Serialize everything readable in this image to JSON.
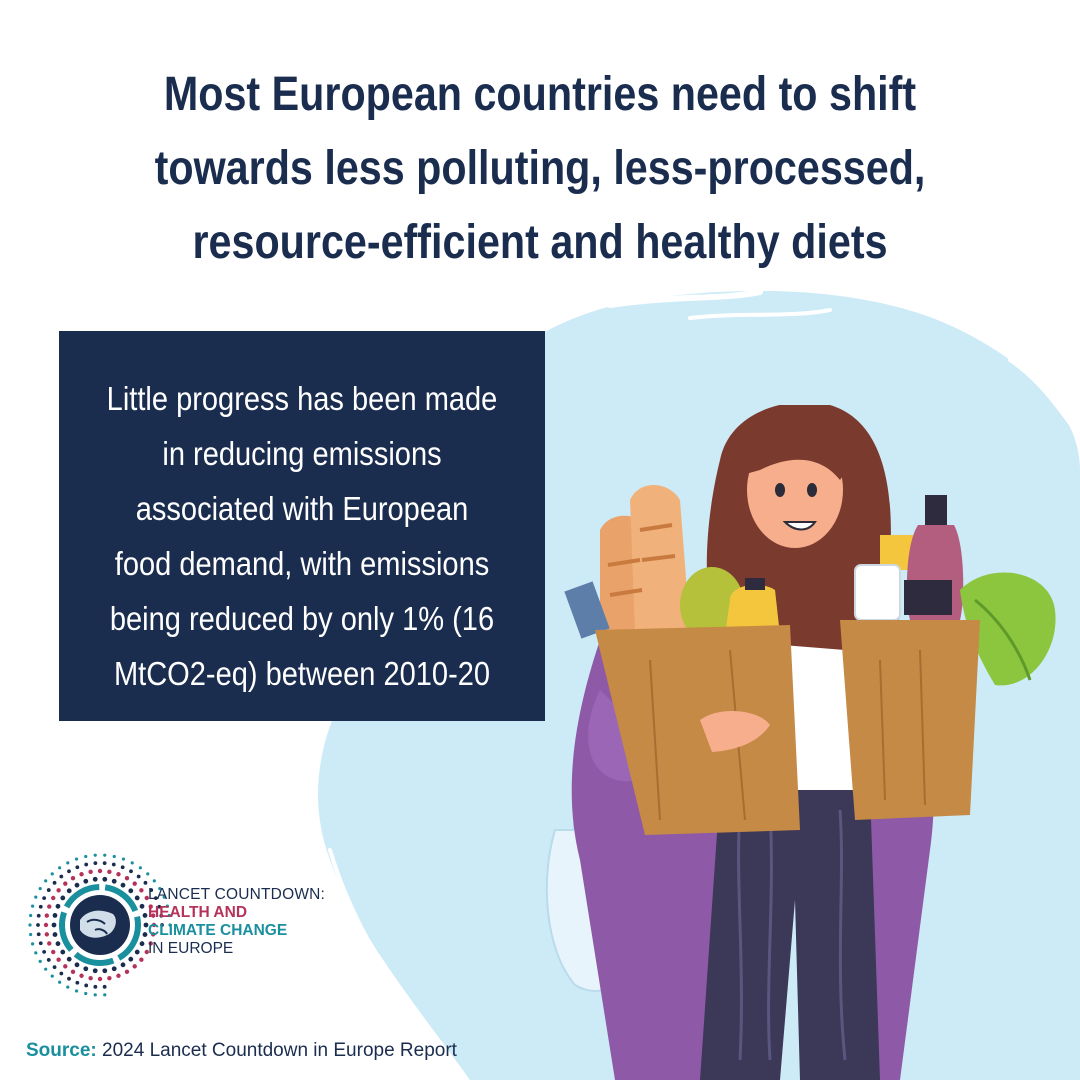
{
  "headline": "Most European countries need to shift towards less polluting, less-processed, resource-efficient and healthy diets",
  "info_box": {
    "text": "Little progress has been made in reducing emissions associated with European food demand, with emissions being reduced by only 1% (16 MtCO2-eq) between 2010-20"
  },
  "logo": {
    "line1": "LANCET COUNTDOWN:",
    "line2": "HEALTH AND",
    "line3": "CLIMATE CHANGE",
    "line4": "IN EUROPE"
  },
  "source": {
    "label": "Source:",
    "text": "2024 Lancet Countdown in Europe Report"
  },
  "colors": {
    "navy": "#1b2d4f",
    "light_blue": "#cdeaf7",
    "crimson": "#b5325a",
    "teal": "#1a8f9e"
  },
  "illustration": "woman-carrying-grocery-bags"
}
